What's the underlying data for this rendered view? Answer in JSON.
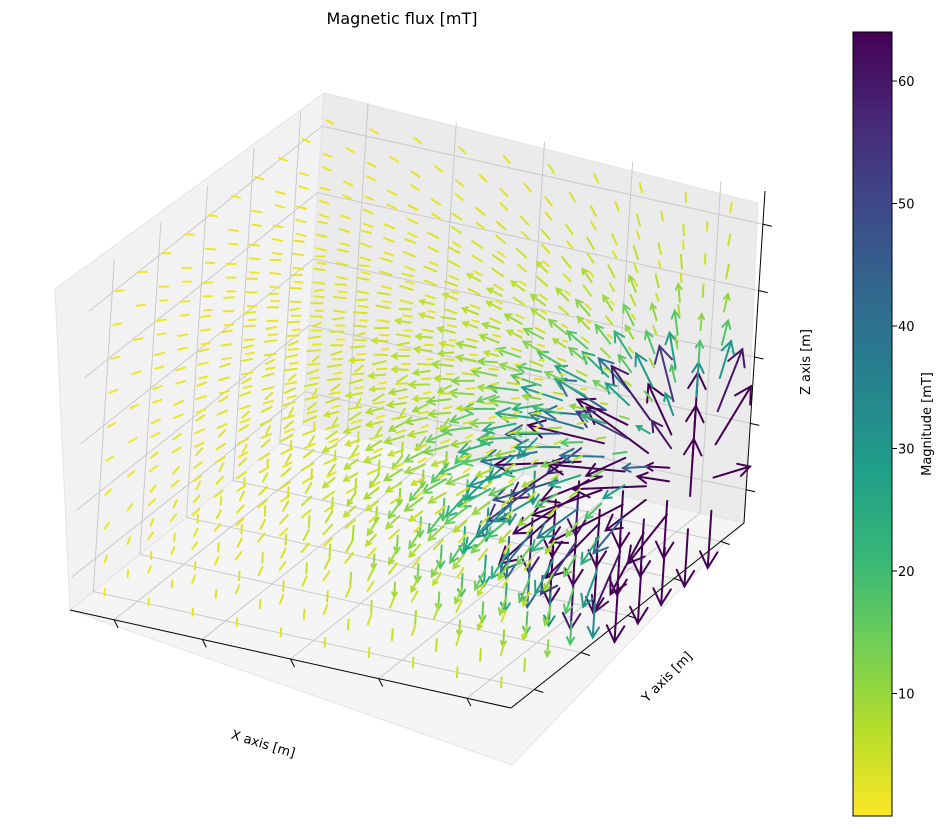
{
  "chart_data": {
    "type": "quiver3d",
    "title": "Magnetic flux [mT]",
    "xlabel": "X axis [m]",
    "ylabel": "Y axis [m]",
    "zlabel": "Z axis [m]",
    "grid": true,
    "x_ticks": 5,
    "y_ticks": 5,
    "z_ticks": 5,
    "colorbar": {
      "label": "Magnitude [mT]",
      "colormap": "viridis",
      "range": [
        0,
        64
      ],
      "ticks": [
        10,
        20,
        30,
        40,
        50,
        60
      ],
      "tick_labels": [
        "10",
        "20",
        "30",
        "40",
        "50",
        "60"
      ],
      "stops": [
        "#fde725",
        "#b5de2b",
        "#6ece58",
        "#35b779",
        "#1f9e89",
        "#26828e",
        "#31688e",
        "#3e4989",
        "#482878",
        "#440154"
      ]
    },
    "field": {
      "grid_points_per_axis": 10,
      "magnitude_min": 0.5,
      "magnitude_max": 64,
      "source_location": "near the front-right corner of the box, low in z",
      "field_shape": "dipole-like; largest upward-pointing arrows near the front-right corner, small arrows elsewhere"
    }
  }
}
